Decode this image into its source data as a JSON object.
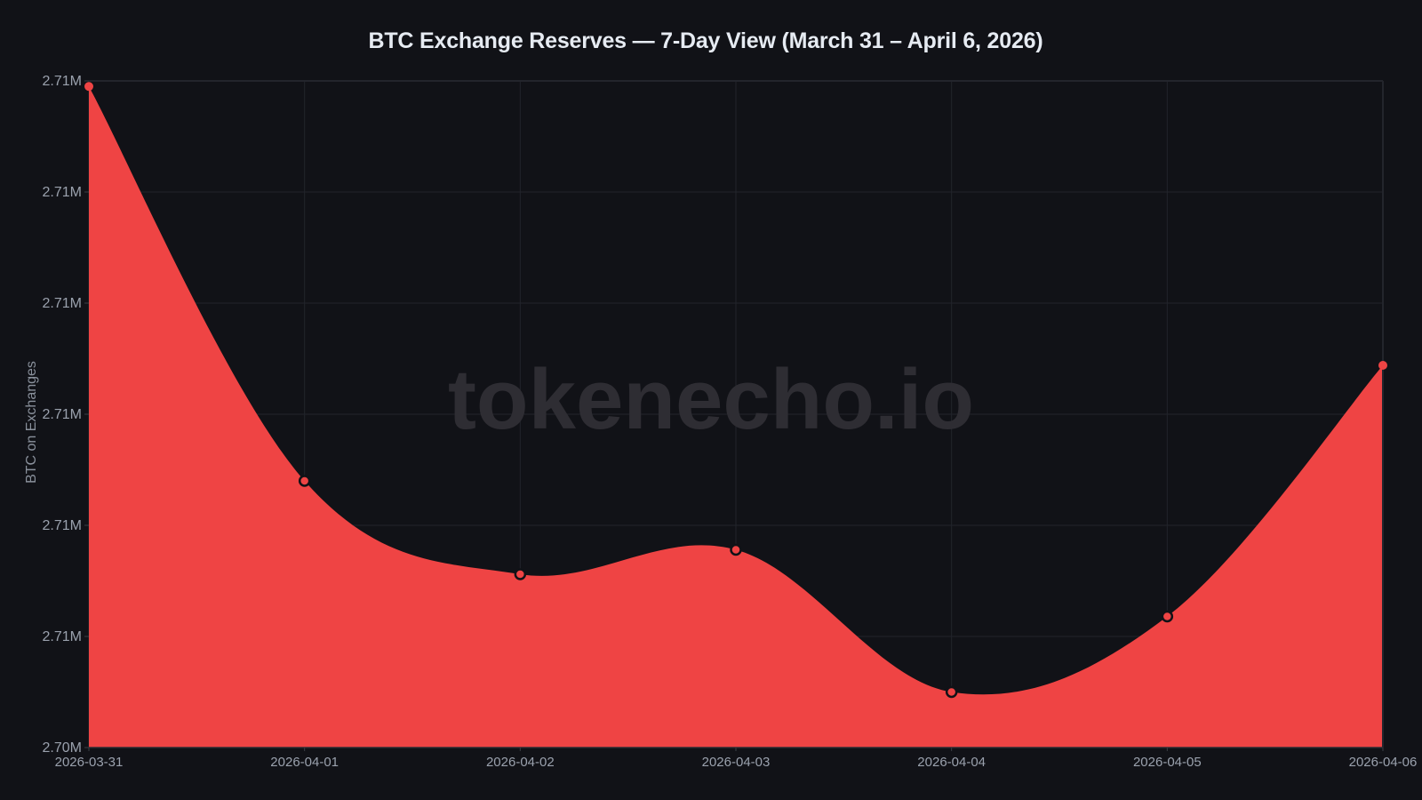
{
  "title": "BTC Exchange Reserves — 7-Day View (March 31 – April 6, 2026)",
  "watermark": "tokenecho.io",
  "colors": {
    "background": "#111217",
    "area_fill": "#ef4444",
    "grid": "#22242b",
    "text": "#9aa1ad",
    "title": "#e6ebf2",
    "marker_edge": "#111217"
  },
  "chart_data": {
    "type": "area",
    "title": "BTC Exchange Reserves — 7-Day View (March 31 – April 6, 2026)",
    "xlabel": "",
    "ylabel": "BTC on Exchanges",
    "categories": [
      "2026-03-31",
      "2026-04-01",
      "2026-04-02",
      "2026-04-03",
      "2026-04-04",
      "2026-04-05",
      "2026-04-06"
    ],
    "series": [
      {
        "name": "BTC on Exchanges",
        "values": [
          2710450,
          2706900,
          2706060,
          2706280,
          2705000,
          2705680,
          2707940
        ]
      }
    ],
    "ylim": [
      2704500,
      2710500
    ],
    "yticks": [
      2704500,
      2705500,
      2706500,
      2707500,
      2708500,
      2709500,
      2710500
    ],
    "ytick_labels": [
      "2.70M",
      "2.71M",
      "2.71M",
      "2.71M",
      "2.71M",
      "2.71M",
      "2.71M"
    ],
    "grid": true,
    "legend": "none",
    "smooth": true,
    "markers": true
  }
}
